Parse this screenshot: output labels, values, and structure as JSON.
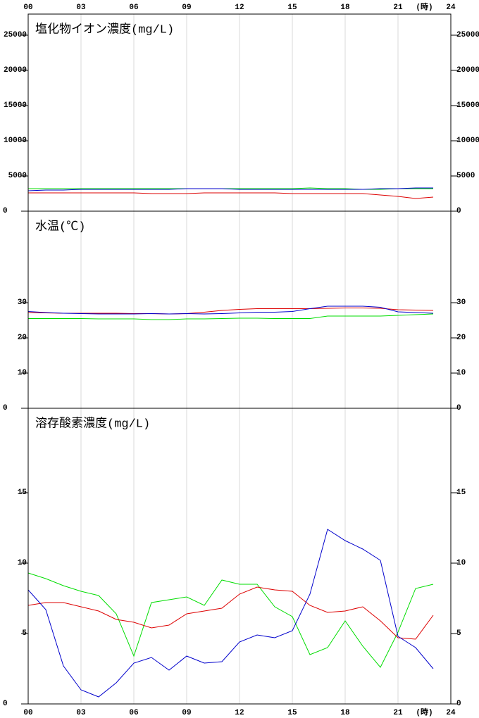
{
  "chart_data": [
    {
      "type": "line",
      "title": "塩化物イオン濃度(mg/L)",
      "xlabel": "(時)",
      "x": [
        0,
        1,
        2,
        3,
        4,
        5,
        6,
        7,
        8,
        9,
        10,
        11,
        12,
        13,
        14,
        15,
        16,
        17,
        18,
        19,
        20,
        21,
        22,
        23
      ],
      "xlim": [
        0,
        24
      ],
      "xticks": [
        {
          "value": 0,
          "label": "00"
        },
        {
          "value": 3,
          "label": "03"
        },
        {
          "value": 6,
          "label": "06"
        },
        {
          "value": 9,
          "label": "09"
        },
        12,
        15,
        18,
        21,
        24
      ],
      "ylim": [
        0,
        28000
      ],
      "yticks": [
        0,
        5000,
        10000,
        15000,
        20000,
        25000
      ],
      "series": [
        {
          "color": "#00dd00",
          "values": [
            3200,
            3200,
            3200,
            3200,
            3200,
            3200,
            3200,
            3200,
            3200,
            3200,
            3200,
            3200,
            3200,
            3200,
            3200,
            3200,
            3300,
            3200,
            3200,
            3100,
            3100,
            3200,
            3200,
            3200
          ]
        },
        {
          "color": "#0000cc",
          "values": [
            2900,
            3000,
            3000,
            3100,
            3100,
            3100,
            3100,
            3100,
            3100,
            3200,
            3200,
            3200,
            3100,
            3100,
            3100,
            3100,
            3100,
            3100,
            3100,
            3100,
            3200,
            3200,
            3300,
            3300
          ]
        },
        {
          "color": "#dd0000",
          "values": [
            2600,
            2600,
            2600,
            2600,
            2600,
            2600,
            2600,
            2500,
            2500,
            2500,
            2600,
            2600,
            2600,
            2600,
            2600,
            2500,
            2500,
            2500,
            2500,
            2500,
            2300,
            2100,
            1800,
            2000
          ]
        }
      ]
    },
    {
      "type": "line",
      "title": "水温(℃)",
      "x": [
        0,
        1,
        2,
        3,
        4,
        5,
        6,
        7,
        8,
        9,
        10,
        11,
        12,
        13,
        14,
        15,
        16,
        17,
        18,
        19,
        20,
        21,
        22,
        23
      ],
      "xlim": [
        0,
        24
      ],
      "xticks": [
        {
          "value": 0,
          "label": "00"
        },
        {
          "value": 3,
          "label": "03"
        },
        {
          "value": 6,
          "label": "06"
        },
        {
          "value": 9,
          "label": "09"
        },
        12,
        15,
        18,
        21,
        24
      ],
      "ylim": [
        0,
        56
      ],
      "yticks": [
        0,
        10,
        20,
        30
      ],
      "series": [
        {
          "color": "#00dd00",
          "values": [
            25.5,
            25.5,
            25.5,
            25.5,
            25.4,
            25.4,
            25.4,
            25.2,
            25.2,
            25.4,
            25.4,
            25.5,
            25.6,
            25.6,
            25.5,
            25.5,
            25.5,
            26.2,
            26.2,
            26.2,
            26.2,
            26.4,
            26.6,
            26.8
          ]
        },
        {
          "color": "#dd0000",
          "values": [
            27.2,
            27.1,
            27.0,
            27.0,
            27.0,
            27.0,
            26.9,
            26.9,
            26.8,
            26.9,
            27.3,
            27.8,
            28.1,
            28.3,
            28.3,
            28.3,
            28.3,
            28.4,
            28.5,
            28.5,
            28.4,
            28.0,
            27.9,
            27.8
          ]
        },
        {
          "color": "#0000cc",
          "values": [
            27.5,
            27.2,
            27.0,
            26.9,
            26.8,
            26.8,
            26.8,
            26.9,
            26.8,
            26.9,
            26.8,
            26.9,
            27.1,
            27.3,
            27.3,
            27.5,
            28.3,
            29.0,
            29.0,
            29.0,
            28.7,
            27.4,
            27.2,
            27.0
          ]
        }
      ]
    },
    {
      "type": "line",
      "title": "溶存酸素濃度(mg/L)",
      "xlabel": "(時)",
      "x": [
        0,
        1,
        2,
        3,
        4,
        5,
        6,
        7,
        8,
        9,
        10,
        11,
        12,
        13,
        14,
        15,
        16,
        17,
        18,
        19,
        20,
        21,
        22,
        23
      ],
      "xlim": [
        0,
        24
      ],
      "xticks": [
        {
          "value": 0,
          "label": "00"
        },
        {
          "value": 3,
          "label": "03"
        },
        {
          "value": 6,
          "label": "06"
        },
        {
          "value": 9,
          "label": "09"
        },
        12,
        15,
        18,
        21,
        24
      ],
      "ylim": [
        0,
        21
      ],
      "yticks": [
        0,
        5,
        10,
        15
      ],
      "series": [
        {
          "color": "#00dd00",
          "values": [
            9.3,
            8.9,
            8.4,
            8.0,
            7.7,
            6.4,
            3.4,
            7.2,
            7.4,
            7.6,
            7.0,
            8.8,
            8.5,
            8.5,
            6.9,
            6.2,
            3.5,
            4.0,
            5.9,
            4.1,
            2.6,
            5.1,
            8.2,
            8.5
          ]
        },
        {
          "color": "#dd0000",
          "values": [
            7.0,
            7.2,
            7.2,
            6.9,
            6.6,
            6.0,
            5.8,
            5.4,
            5.6,
            6.4,
            6.6,
            6.8,
            7.8,
            8.3,
            8.1,
            8.0,
            7.0,
            6.5,
            6.6,
            6.9,
            5.9,
            4.7,
            4.6,
            6.3
          ]
        },
        {
          "color": "#0000cc",
          "values": [
            8.1,
            6.7,
            2.7,
            1.0,
            0.5,
            1.5,
            2.9,
            3.3,
            2.4,
            3.4,
            2.9,
            3.0,
            4.4,
            4.9,
            4.7,
            5.2,
            7.8,
            12.4,
            11.6,
            11.0,
            10.2,
            4.8,
            4.0,
            2.5
          ]
        }
      ]
    }
  ]
}
